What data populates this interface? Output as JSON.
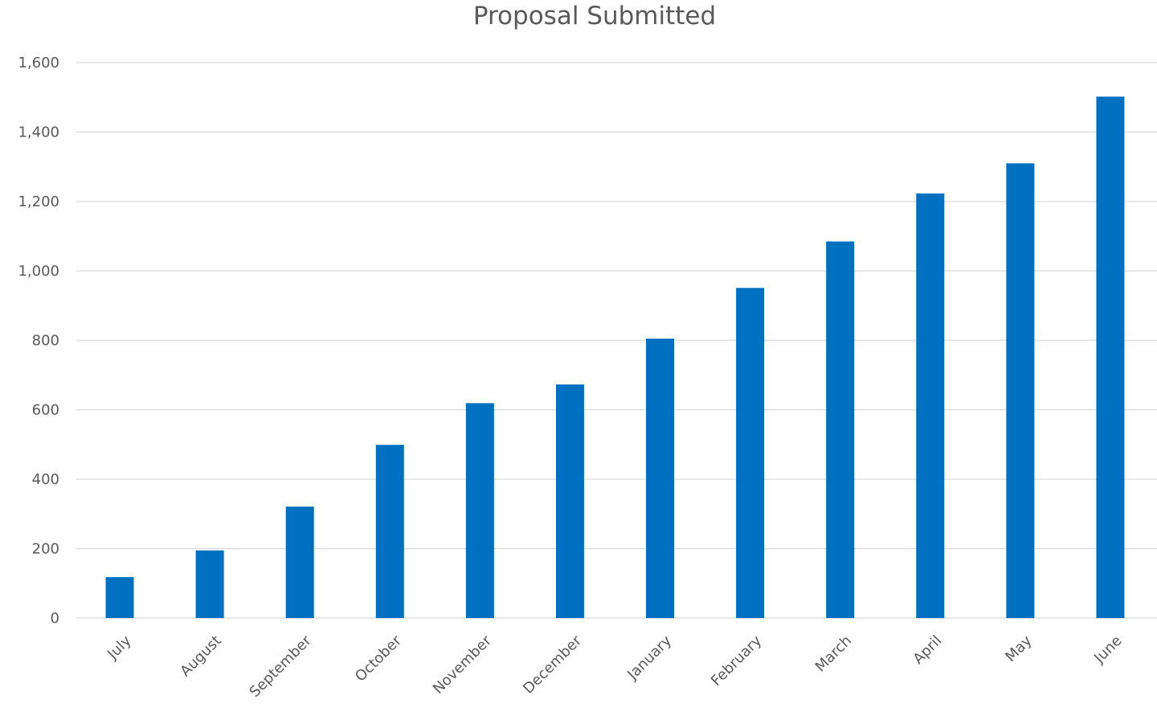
{
  "chart_data": {
    "type": "bar",
    "title": "Proposal Submitted",
    "xlabel": "",
    "ylabel": "",
    "categories": [
      "July",
      "August",
      "September",
      "October",
      "November",
      "December",
      "January",
      "February",
      "March",
      "April",
      "May",
      "June"
    ],
    "values": [
      118,
      195,
      321,
      499,
      619,
      673,
      805,
      951,
      1085,
      1223,
      1310,
      1502
    ],
    "ylim": [
      0,
      1600
    ],
    "yticks": [
      0,
      200,
      400,
      600,
      800,
      1000,
      1200,
      1400,
      1600
    ],
    "ytick_labels": [
      "0",
      "200",
      "400",
      "600",
      "800",
      "1,000",
      "1,200",
      "1,400",
      "1,600"
    ],
    "grid": true,
    "legend": "none",
    "colors": {
      "bar": "#0070C0",
      "grid": "#D9D9D9",
      "text": "#595959"
    }
  }
}
